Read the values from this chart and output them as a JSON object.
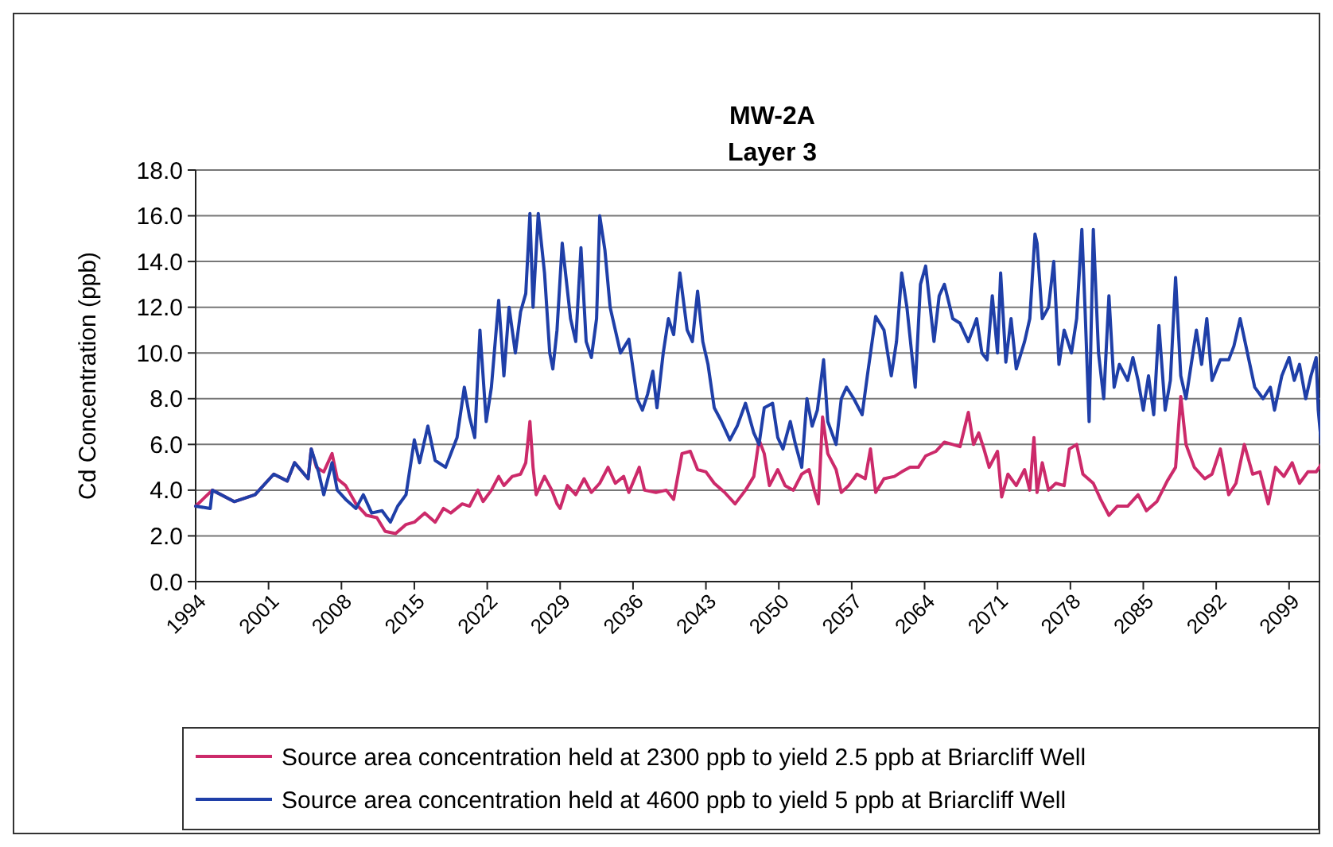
{
  "chart_data": {
    "type": "line",
    "title": "MW-2A",
    "subtitle": "Layer 3",
    "ylabel": "Cd Concentration (ppb)",
    "xlim": [
      1994,
      2102.3
    ],
    "xticks": [
      1994,
      2001,
      2008,
      2015,
      2022,
      2029,
      2036,
      2043,
      2050,
      2057,
      2064,
      2071,
      2078,
      2085,
      2092,
      2099
    ],
    "ylim": [
      0,
      18
    ],
    "yticks": [
      {
        "value": 0,
        "label": "0.0"
      },
      {
        "value": 2,
        "label": "2.0"
      },
      {
        "value": 4,
        "label": "4.0"
      },
      {
        "value": 6,
        "label": "6.0"
      },
      {
        "value": 8,
        "label": "8.0"
      },
      {
        "value": 10,
        "label": "10.0"
      },
      {
        "value": 12,
        "label": "12.0"
      },
      {
        "value": 14,
        "label": "14.0"
      },
      {
        "value": 16,
        "label": "16.0"
      },
      {
        "value": 18,
        "label": "18.0"
      }
    ],
    "grid": "y",
    "legend": "bottom",
    "marker": "none",
    "line_style": "solid",
    "series": [
      {
        "name": "Source area concentration held at 2300 ppb to yield 2.5 ppb at Briarcliff Well",
        "color": "#cc2a6a",
        "x": [
          1994.0,
          1995.6,
          1997.7,
          1999.7,
          2001.5,
          2002.8,
          2003.5,
          2004.8,
          2005.1,
          2005.6,
          2006.3,
          2007.1,
          2007.6,
          2008.4,
          2009.4,
          2010.4,
          2011.4,
          2012.2,
          2013.2,
          2014.2,
          2015.0,
          2016.0,
          2017.0,
          2017.8,
          2018.5,
          2019.6,
          2020.3,
          2021.1,
          2021.6,
          2022.4,
          2023.1,
          2023.6,
          2024.4,
          2025.2,
          2025.7,
          2026.1,
          2026.4,
          2026.7,
          2027.5,
          2028.2,
          2028.7,
          2029.0,
          2029.7,
          2030.5,
          2031.3,
          2032.0,
          2032.8,
          2033.6,
          2034.3,
          2035.1,
          2035.6,
          2036.6,
          2037.1,
          2038.2,
          2039.2,
          2039.9,
          2040.7,
          2041.5,
          2042.2,
          2043.0,
          2043.8,
          2044.8,
          2045.8,
          2046.8,
          2047.6,
          2048.1,
          2048.6,
          2049.1,
          2049.9,
          2050.6,
          2051.4,
          2052.2,
          2052.9,
          2053.4,
          2053.8,
          2054.2,
          2054.7,
          2055.5,
          2056.0,
          2056.7,
          2057.5,
          2058.3,
          2058.8,
          2059.3,
          2060.1,
          2061.1,
          2061.8,
          2062.6,
          2063.4,
          2064.1,
          2065.1,
          2065.9,
          2066.7,
          2067.4,
          2068.2,
          2068.7,
          2069.2,
          2069.7,
          2070.2,
          2071.0,
          2071.4,
          2072.0,
          2072.8,
          2073.6,
          2074.1,
          2074.5,
          2074.8,
          2075.3,
          2075.9,
          2076.6,
          2077.4,
          2077.9,
          2078.6,
          2079.2,
          2080.2,
          2080.9,
          2081.7,
          2082.5,
          2083.5,
          2084.5,
          2085.3,
          2086.3,
          2087.3,
          2088.1,
          2088.6,
          2089.1,
          2089.9,
          2090.9,
          2091.6,
          2092.4,
          2093.2,
          2093.9,
          2094.7,
          2095.5,
          2096.2,
          2097.0,
          2097.7,
          2098.5,
          2099.3,
          2100.0,
          2100.8,
          2101.6,
          2102.2
        ],
        "values": [
          3.3,
          4.0,
          3.5,
          3.8,
          4.7,
          4.4,
          5.2,
          4.5,
          5.8,
          5.0,
          4.8,
          5.6,
          4.5,
          4.2,
          3.4,
          2.9,
          2.8,
          2.2,
          2.1,
          2.5,
          2.6,
          3.0,
          2.6,
          3.2,
          3.0,
          3.4,
          3.3,
          4.0,
          3.5,
          4.0,
          4.6,
          4.2,
          4.6,
          4.7,
          5.2,
          7.0,
          5.0,
          3.8,
          4.6,
          4.0,
          3.4,
          3.2,
          4.2,
          3.8,
          4.5,
          3.9,
          4.3,
          5.0,
          4.3,
          4.6,
          3.9,
          5.0,
          4.0,
          3.9,
          4.0,
          3.6,
          5.6,
          5.7,
          4.9,
          4.8,
          4.3,
          3.9,
          3.4,
          4.0,
          4.6,
          6.2,
          5.6,
          4.2,
          4.9,
          4.2,
          4.0,
          4.7,
          4.9,
          4.0,
          3.4,
          7.2,
          5.6,
          4.9,
          3.9,
          4.2,
          4.7,
          4.5,
          5.8,
          3.9,
          4.5,
          4.6,
          4.8,
          5.0,
          5.0,
          5.5,
          5.7,
          6.1,
          6.0,
          5.9,
          7.4,
          6.0,
          6.5,
          5.8,
          5.0,
          5.7,
          3.7,
          4.7,
          4.2,
          4.9,
          4.0,
          6.3,
          3.9,
          5.2,
          4.0,
          4.3,
          4.2,
          5.8,
          6.0,
          4.7,
          4.3,
          3.6,
          2.9,
          3.3,
          3.3,
          3.8,
          3.1,
          3.5,
          4.4,
          5.0,
          8.1,
          6.0,
          5.0,
          4.5,
          4.7,
          5.8,
          3.8,
          4.3,
          6.0,
          4.7,
          4.8,
          3.4,
          5.0,
          4.6,
          5.2,
          4.3,
          4.8,
          4.8,
          5.2
        ]
      },
      {
        "name": "Source area concentration held at 4600 ppb to yield 5 ppb at Briarcliff Well",
        "color": "#1f3fa8",
        "x": [
          1994.0,
          1995.4,
          1995.6,
          1997.7,
          1999.7,
          2001.5,
          2002.8,
          2003.5,
          2004.8,
          2005.1,
          2005.8,
          2006.3,
          2007.1,
          2007.6,
          2008.4,
          2009.4,
          2010.1,
          2010.9,
          2011.9,
          2012.7,
          2013.4,
          2014.2,
          2015.0,
          2015.5,
          2016.3,
          2017.0,
          2018.0,
          2019.1,
          2019.8,
          2020.3,
          2020.8,
          2021.3,
          2021.9,
          2022.4,
          2023.1,
          2023.6,
          2024.1,
          2024.7,
          2025.2,
          2025.7,
          2026.1,
          2026.4,
          2026.9,
          2027.5,
          2028.0,
          2028.3,
          2028.7,
          2029.2,
          2030.0,
          2030.5,
          2031.0,
          2031.5,
          2032.0,
          2032.5,
          2032.8,
          2033.3,
          2033.8,
          2034.3,
          2034.8,
          2035.6,
          2036.4,
          2036.9,
          2037.4,
          2037.9,
          2038.3,
          2038.9,
          2039.4,
          2039.9,
          2040.5,
          2041.2,
          2041.7,
          2042.2,
          2042.7,
          2043.2,
          2043.8,
          2044.5,
          2045.3,
          2046.0,
          2046.8,
          2047.6,
          2048.1,
          2048.6,
          2049.4,
          2049.9,
          2050.4,
          2051.1,
          2051.6,
          2052.2,
          2052.7,
          2053.2,
          2053.7,
          2054.3,
          2054.7,
          2055.5,
          2056.0,
          2056.5,
          2057.2,
          2058.0,
          2058.5,
          2059.3,
          2060.1,
          2060.8,
          2061.3,
          2061.8,
          2062.3,
          2063.1,
          2063.6,
          2064.1,
          2064.9,
          2065.4,
          2065.9,
          2066.7,
          2067.4,
          2068.2,
          2069.0,
          2069.5,
          2070.0,
          2070.5,
          2071.0,
          2071.3,
          2071.8,
          2072.3,
          2072.8,
          2073.6,
          2074.1,
          2074.6,
          2074.8,
          2075.3,
          2075.9,
          2076.4,
          2076.9,
          2077.4,
          2078.1,
          2078.6,
          2079.1,
          2079.4,
          2079.8,
          2080.2,
          2080.7,
          2081.2,
          2081.7,
          2082.2,
          2082.7,
          2083.5,
          2084.0,
          2084.5,
          2085.0,
          2085.5,
          2086.0,
          2086.5,
          2087.1,
          2087.6,
          2088.1,
          2088.6,
          2089.1,
          2089.6,
          2090.1,
          2090.6,
          2091.1,
          2091.6,
          2092.4,
          2093.2,
          2093.7,
          2094.3,
          2095.0,
          2095.7,
          2096.5,
          2097.2,
          2097.6,
          2098.3,
          2099.0,
          2099.5,
          2100.0,
          2100.6,
          2101.1,
          2101.6,
          2101.8,
          2102.1
        ],
        "values": [
          3.3,
          3.2,
          4.0,
          3.5,
          3.8,
          4.7,
          4.4,
          5.2,
          4.5,
          5.8,
          4.8,
          3.8,
          5.2,
          4.0,
          3.6,
          3.2,
          3.8,
          3.0,
          3.1,
          2.6,
          3.3,
          3.8,
          6.2,
          5.2,
          6.8,
          5.3,
          5.0,
          6.3,
          8.5,
          7.2,
          6.3,
          11.0,
          7.0,
          8.5,
          12.3,
          9.0,
          12.0,
          10.0,
          11.8,
          12.6,
          16.1,
          12.0,
          16.1,
          13.5,
          10.0,
          9.3,
          11.0,
          14.8,
          11.5,
          10.5,
          14.6,
          10.5,
          9.8,
          11.5,
          16.0,
          14.5,
          12.0,
          11.0,
          10.0,
          10.6,
          8.0,
          7.5,
          8.2,
          9.2,
          7.6,
          10.0,
          11.5,
          10.8,
          13.5,
          11.0,
          10.5,
          12.7,
          10.5,
          9.5,
          7.6,
          7.0,
          6.2,
          6.8,
          7.8,
          6.5,
          6.0,
          7.6,
          7.8,
          6.3,
          5.8,
          7.0,
          6.0,
          5.0,
          8.0,
          6.8,
          7.5,
          9.7,
          7.0,
          6.0,
          8.0,
          8.5,
          8.0,
          7.3,
          9.0,
          11.6,
          11.0,
          9.0,
          10.5,
          13.5,
          12.0,
          8.5,
          13.0,
          13.8,
          10.5,
          12.5,
          13.0,
          11.5,
          11.3,
          10.5,
          11.5,
          10.0,
          9.7,
          12.5,
          10.0,
          13.5,
          9.6,
          11.5,
          9.3,
          10.5,
          11.5,
          15.2,
          14.8,
          11.5,
          12.0,
          14.0,
          9.5,
          11.0,
          10.0,
          11.5,
          15.4,
          12.0,
          7.0,
          15.4,
          10.0,
          8.0,
          12.5,
          8.5,
          9.5,
          8.8,
          9.8,
          8.8,
          7.5,
          9.0,
          7.3,
          11.2,
          7.5,
          8.8,
          13.3,
          9.0,
          8.0,
          9.5,
          11.0,
          9.5,
          11.5,
          8.8,
          9.7,
          9.7,
          10.3,
          11.5,
          10.0,
          8.5,
          8.0,
          8.5,
          7.5,
          9.0,
          9.8,
          8.8,
          9.5,
          8.0,
          9.0,
          9.8,
          7.5,
          6.0
        ]
      }
    ]
  }
}
